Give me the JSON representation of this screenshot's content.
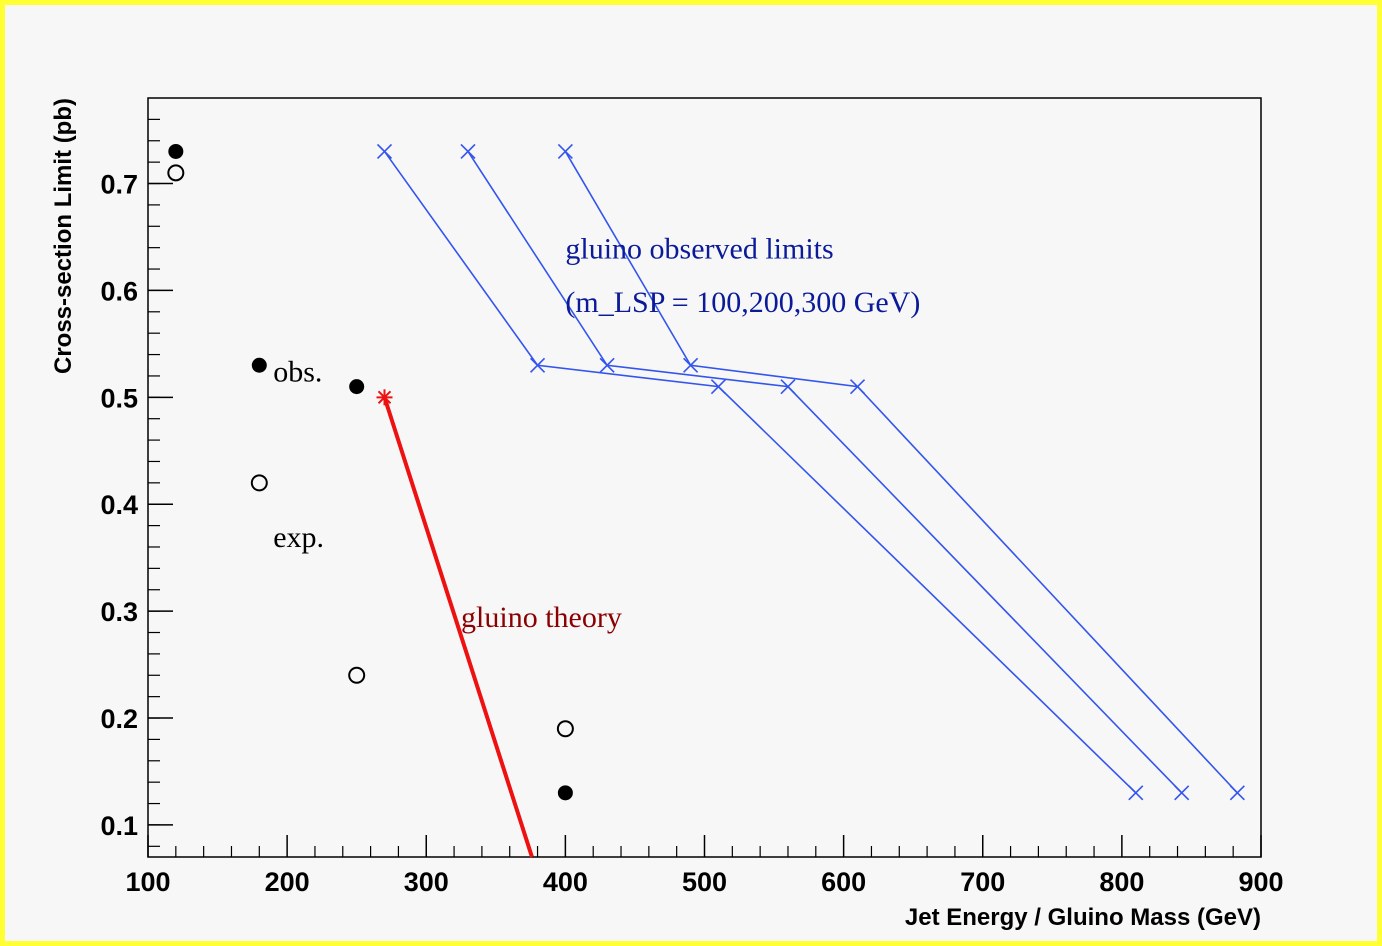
{
  "colors": {
    "frame": "#ffff33",
    "background": "#f7f7f7",
    "axes": "#000000",
    "observed_series": "#3355ee",
    "theory_series": "#ee1111",
    "observed_label": "#0a1a99",
    "theory_label": "#8b0000",
    "points": "#000000"
  },
  "chart_data": {
    "type": "scatter",
    "xlabel": "Jet Energy / Gluino Mass (GeV)",
    "ylabel": "Cross-section Limit (pb)",
    "xlim": [
      100,
      900
    ],
    "ylim": [
      0.07,
      0.78
    ],
    "x_ticks": [
      100,
      200,
      300,
      400,
      500,
      600,
      700,
      800,
      900
    ],
    "y_ticks": [
      0.1,
      0.2,
      0.3,
      0.4,
      0.5,
      0.6,
      0.7
    ],
    "x_tick_labels": [
      "100",
      "200",
      "300",
      "400",
      "500",
      "600",
      "700",
      "800",
      "900"
    ],
    "y_tick_labels": [
      "0.1",
      "0.2",
      "0.3",
      "0.4",
      "0.5",
      "0.6",
      "0.7"
    ],
    "grid": false,
    "series": [
      {
        "marker": "filled-circle",
        "color": "#000000",
        "points": [
          [
            120,
            0.73
          ],
          [
            180,
            0.53
          ],
          [
            250,
            0.51
          ],
          [
            400,
            0.13
          ]
        ]
      },
      {
        "marker": "open-circle",
        "color": "#000000",
        "points": [
          [
            120,
            0.71
          ],
          [
            180,
            0.42
          ],
          [
            250,
            0.24
          ],
          [
            400,
            0.19
          ]
        ]
      },
      {
        "marker": "x",
        "color": "#3355ee",
        "points": [
          [
            270,
            0.73
          ],
          [
            380,
            0.53
          ],
          [
            510,
            0.51
          ],
          [
            810,
            0.13
          ]
        ]
      },
      {
        "marker": "x",
        "color": "#3355ee",
        "points": [
          [
            330,
            0.73
          ],
          [
            430,
            0.53
          ],
          [
            560,
            0.51
          ],
          [
            843,
            0.13
          ]
        ]
      },
      {
        "marker": "x",
        "color": "#3355ee",
        "points": [
          [
            400,
            0.73
          ],
          [
            490,
            0.53
          ],
          [
            610,
            0.51
          ],
          [
            883,
            0.13
          ]
        ]
      },
      {
        "marker": "star",
        "color": "#ee1111",
        "line_width": "thick",
        "points": [
          [
            270,
            0.5
          ],
          [
            376,
            0.07
          ]
        ]
      }
    ],
    "annotations": [
      {
        "text": "obs.",
        "x": 190,
        "y": 0.515,
        "color": "#000000"
      },
      {
        "text": "exp.",
        "x": 190,
        "y": 0.36,
        "color": "#000000"
      },
      {
        "text": "gluino theory",
        "x": 325,
        "y": 0.285,
        "color": "#8b0000"
      },
      {
        "text": "gluino observed limits",
        "x": 400,
        "y": 0.63,
        "color": "#0a1a99"
      },
      {
        "text": "(m_LSP = 100,200,300 GeV)",
        "x": 400,
        "y": 0.58,
        "color": "#0a1a99"
      }
    ]
  }
}
